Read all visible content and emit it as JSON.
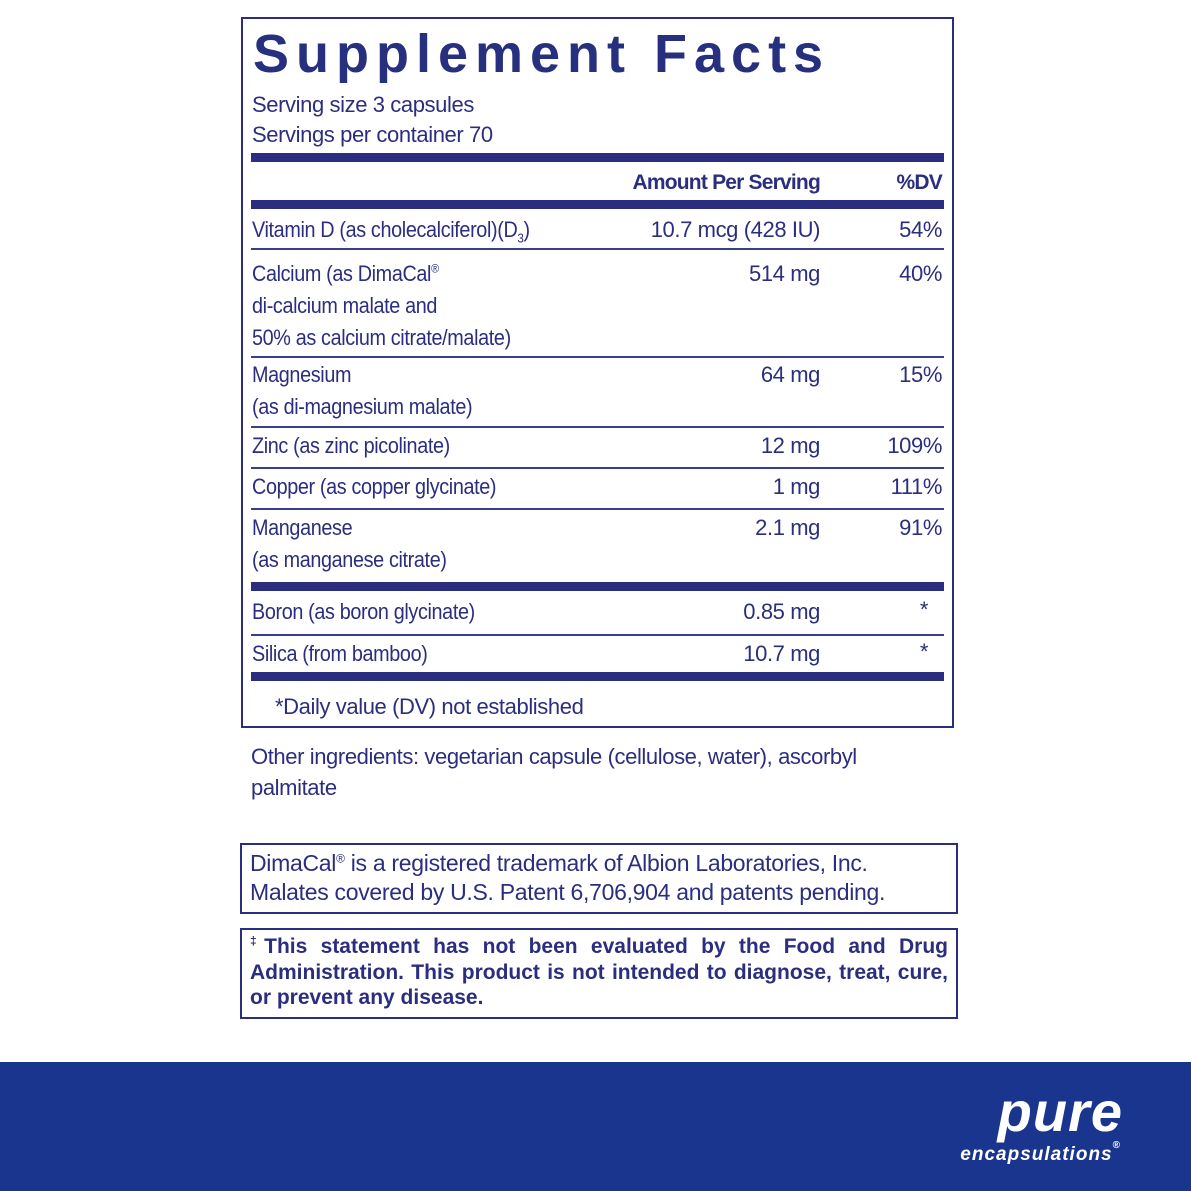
{
  "title": "Supplement Facts",
  "serving_size": "Serving size  3 capsules",
  "servings_per_container": "Servings per container  70",
  "headers": {
    "amount": "Amount Per Serving",
    "dv": "%DV"
  },
  "rows": [
    {
      "name": [
        "Vitamin D (as cholecalciferol)(D",
        "3",
        ")"
      ],
      "amount": "10.7 mcg (428 IU)",
      "dv": "54%"
    },
    {
      "name": [
        "Calcium (as DimaCal",
        "®",
        "di-calcium malate and",
        "50% as calcium citrate/malate)"
      ],
      "amount": "514 mg",
      "dv": "40%"
    },
    {
      "name": [
        "Magnesium",
        "(as di-magnesium malate)"
      ],
      "amount": "64 mg",
      "dv": "15%"
    },
    {
      "name": [
        "Zinc (as zinc picolinate)"
      ],
      "amount": "12 mg",
      "dv": "109%"
    },
    {
      "name": [
        "Copper (as copper glycinate)"
      ],
      "amount": "1 mg",
      "dv": "111%"
    },
    {
      "name": [
        "Manganese",
        "(as manganese citrate)"
      ],
      "amount": "2.1 mg",
      "dv": "91%"
    },
    {
      "name": [
        "Boron (as boron glycinate)"
      ],
      "amount": "0.85 mg",
      "dv": "*"
    },
    {
      "name": [
        "Silica (from bamboo)"
      ],
      "amount": "10.7 mg",
      "dv": "*"
    }
  ],
  "footnote": "*Daily value (DV) not established",
  "other_ingredients": [
    "Other ingredients: vegetarian capsule (cellulose, water), ascorbyl",
    "palmitate"
  ],
  "trademark": {
    "line1a": "DimaCal",
    "reg": "®",
    "line1b": " is a registered trademark of Albion Laboratories, Inc.",
    "line2": "Malates covered by U.S. Patent 6,706,904 and patents pending."
  },
  "disclaimer": {
    "mark": "‡",
    "text": "This statement has not been evaluated by the Food and Drug Administration. This product is not intended to diagnose, treat, cure, or prevent any disease."
  },
  "brand": {
    "name": "pure",
    "sub": "encapsulations",
    "reg": "®"
  },
  "colors": {
    "text": "#2b2e7e",
    "banner": "#1a358e"
  }
}
